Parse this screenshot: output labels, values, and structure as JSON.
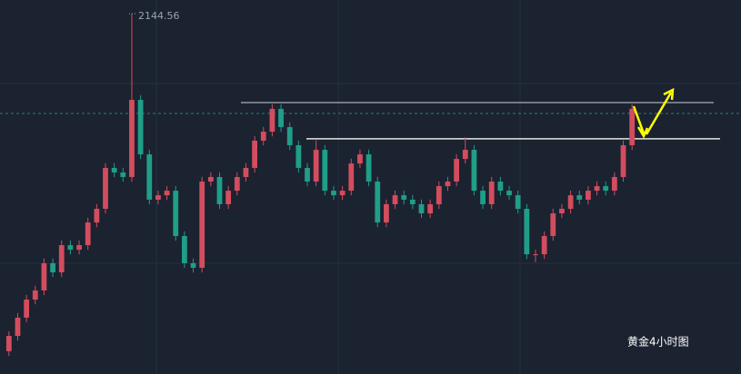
{
  "chart_data": {
    "type": "candlestick",
    "title": "黄金4小时图",
    "high_label": "2144.56",
    "up_color": "#d24d5e",
    "down_color": "#1f9e88",
    "ylim": [
      1915.5,
      2153.2
    ],
    "hlines": [
      2088,
      2065
    ],
    "open": [
      1930.0,
      1939.7,
      1951.3,
      1962.8,
      1968.6,
      1985.9,
      1980.1,
      1997.4,
      1994.5,
      1997.4,
      2011.8,
      2020.5,
      2046.5,
      2043.6,
      2040.7,
      2089.7,
      2055.1,
      2026.3,
      2029.1,
      2032.0,
      2003.2,
      1985.9,
      1983.0,
      2037.8,
      2040.7,
      2023.4,
      2032.0,
      2040.7,
      2046.5,
      2063.8,
      2069.5,
      2084.0,
      2072.4,
      2060.9,
      2046.5,
      2037.8,
      2058.0,
      2032.0,
      2029.1,
      2032.0,
      2049.3,
      2055.1,
      2037.8,
      2011.8,
      2023.4,
      2029.1,
      2026.3,
      2023.4,
      2017.6,
      2023.4,
      2034.9,
      2037.8,
      2052.2,
      2058.0,
      2032.0,
      2023.4,
      2037.8,
      2032.0,
      2029.1,
      2020.5,
      1991.6,
      1991.6,
      2003.2,
      2017.6,
      2020.5,
      2029.1,
      2026.3,
      2032.0,
      2034.9,
      2032.0,
      2040.7,
      2060.9
    ],
    "high": [
      1942.7,
      1954.3,
      1965.8,
      1971.6,
      1988.9,
      1988.9,
      2000.4,
      2000.4,
      2000.4,
      2014.8,
      2023.5,
      2049.5,
      2049.5,
      2046.6,
      2144.56,
      2092.7,
      2058.1,
      2032.1,
      2035.0,
      2035.0,
      2006.2,
      1988.9,
      2040.8,
      2043.7,
      2043.7,
      2035.0,
      2043.7,
      2049.5,
      2066.8,
      2072.5,
      2087.0,
      2087.0,
      2075.4,
      2063.9,
      2049.5,
      2064.0,
      2061.0,
      2035.0,
      2035.0,
      2052.3,
      2058.1,
      2058.1,
      2040.8,
      2026.4,
      2032.1,
      2032.1,
      2029.3,
      2026.4,
      2026.4,
      2037.9,
      2040.8,
      2055.2,
      2066.0,
      2061.0,
      2035.0,
      2040.8,
      2040.8,
      2035.0,
      2032.1,
      2023.5,
      1994.6,
      2006.2,
      2020.6,
      2023.5,
      2032.1,
      2032.1,
      2035.0,
      2037.9,
      2037.9,
      2043.7,
      2063.9,
      2087.0
    ],
    "low": [
      1927.0,
      1936.7,
      1948.3,
      1959.8,
      1965.6,
      1977.1,
      1977.1,
      1991.5,
      1991.5,
      1994.4,
      2008.8,
      2017.5,
      2040.6,
      2037.7,
      2037.7,
      2052.1,
      2023.3,
      2023.3,
      2026.1,
      2000.2,
      1982.9,
      1980.0,
      1980.0,
      2034.8,
      2020.4,
      2020.4,
      2029.0,
      2037.7,
      2043.5,
      2060.8,
      2066.5,
      2069.4,
      2057.9,
      2043.5,
      2034.8,
      2034.8,
      2029.0,
      2026.1,
      2026.1,
      2029.0,
      2046.3,
      2034.8,
      2008.8,
      2008.8,
      2020.4,
      2023.3,
      2020.4,
      2014.6,
      2014.6,
      2020.4,
      2031.9,
      2034.8,
      2049.2,
      2029.0,
      2020.4,
      2020.4,
      2029.0,
      2026.1,
      2017.5,
      1988.6,
      1986.6,
      1988.6,
      2000.2,
      2014.6,
      2017.5,
      2023.3,
      2023.3,
      2029.0,
      2029.0,
      2029.0,
      2037.7,
      2057.9
    ],
    "close": [
      1939.7,
      1951.3,
      1962.8,
      1968.6,
      1985.9,
      1980.1,
      1997.4,
      1994.5,
      1997.4,
      2011.8,
      2020.5,
      2046.5,
      2043.6,
      2040.7,
      2089.7,
      2055.1,
      2026.3,
      2029.1,
      2032.0,
      2003.2,
      1985.9,
      1983.0,
      2037.8,
      2040.7,
      2023.4,
      2032.0,
      2040.7,
      2046.5,
      2063.8,
      2069.5,
      2084.0,
      2072.4,
      2060.9,
      2046.5,
      2037.8,
      2058.0,
      2032.0,
      2029.1,
      2032.0,
      2049.3,
      2055.1,
      2037.8,
      2011.8,
      2023.4,
      2029.1,
      2026.3,
      2023.4,
      2017.6,
      2023.4,
      2034.9,
      2037.8,
      2052.2,
      2058.0,
      2032.0,
      2023.4,
      2037.8,
      2032.0,
      2029.1,
      2020.5,
      1991.6,
      1991.6,
      2003.2,
      2017.6,
      2020.5,
      2029.1,
      2026.3,
      2032.0,
      2034.9,
      2032.0,
      2040.7,
      2060.9,
      2084.0
    ]
  }
}
